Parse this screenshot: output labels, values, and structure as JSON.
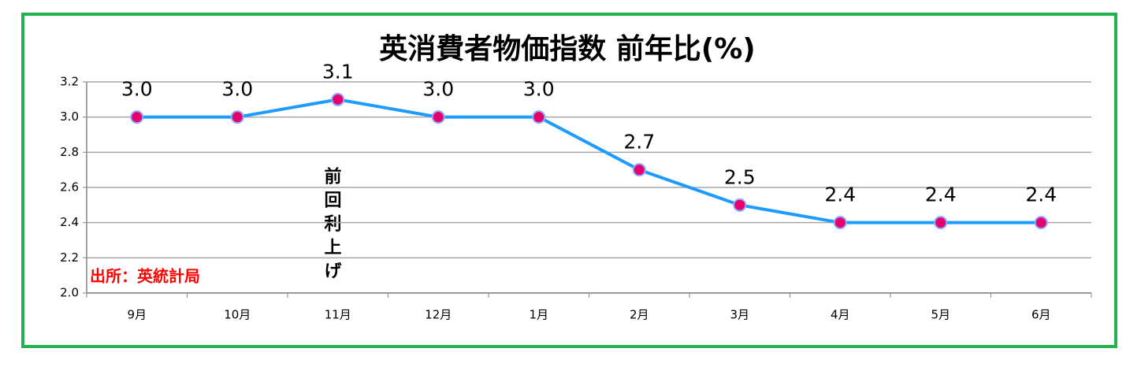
{
  "chart_data": {
    "type": "line",
    "title": "英消費者物価指数 前年比(%)",
    "categories": [
      "9月",
      "10月",
      "11月",
      "12月",
      "1月",
      "2月",
      "3月",
      "4月",
      "5月",
      "6月"
    ],
    "values": [
      3.0,
      3.0,
      3.1,
      3.0,
      3.0,
      2.7,
      2.5,
      2.4,
      2.4,
      2.4
    ],
    "value_labels": [
      "3.0",
      "3.0",
      "3.1",
      "3.0",
      "3.0",
      "2.7",
      "2.5",
      "2.4",
      "2.4",
      "2.4"
    ],
    "color": "#1e9bff",
    "marker_color": "#e6006e",
    "ylim": [
      2.0,
      3.2
    ],
    "yticks": [
      {
        "value": 2.0,
        "label": "2.0"
      },
      2.2,
      2.4,
      2.6,
      2.8,
      {
        "value": 3.0,
        "label": "3.0"
      },
      3.2
    ],
    "grid": true,
    "annotations": [
      "前回利上げ",
      "出所：英統計局"
    ]
  }
}
